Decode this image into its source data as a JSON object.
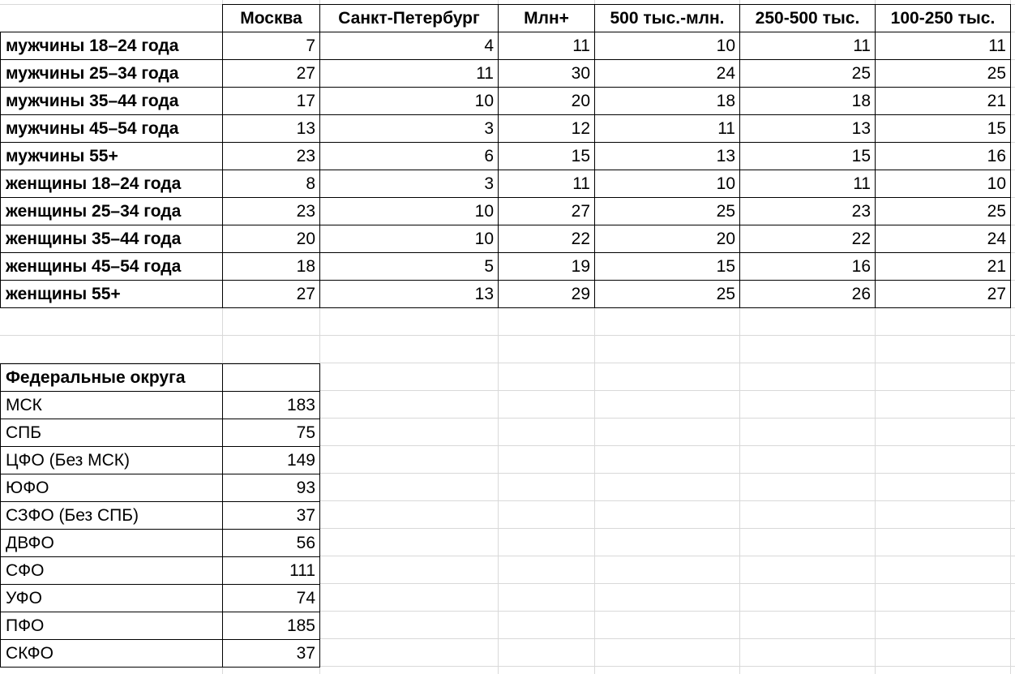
{
  "main_table": {
    "columns": [
      "Москва",
      "Санкт-Петербург",
      "Млн+",
      "500 тыс.-млн.",
      "250-500 тыс.",
      "100-250 тыс."
    ],
    "rows": [
      {
        "label": "мужчины 18–24 года",
        "values": [
          "7",
          "4",
          "11",
          "10",
          "11",
          "11"
        ]
      },
      {
        "label": "мужчины 25–34 года",
        "values": [
          "27",
          "11",
          "30",
          "24",
          "25",
          "25"
        ]
      },
      {
        "label": "мужчины 35–44 года",
        "values": [
          "17",
          "10",
          "20",
          "18",
          "18",
          "21"
        ]
      },
      {
        "label": "мужчины 45–54 года",
        "values": [
          "13",
          "3",
          "12",
          "11",
          "13",
          "15"
        ]
      },
      {
        "label": "мужчины 55+",
        "values": [
          "23",
          "6",
          "15",
          "13",
          "15",
          "16"
        ]
      },
      {
        "label": "женщины 18–24 года",
        "values": [
          "8",
          "3",
          "11",
          "10",
          "11",
          "10"
        ]
      },
      {
        "label": "женщины 25–34 года",
        "values": [
          "23",
          "10",
          "27",
          "25",
          "23",
          "25"
        ]
      },
      {
        "label": "женщины 35–44 года",
        "values": [
          "20",
          "10",
          "22",
          "20",
          "22",
          "24"
        ]
      },
      {
        "label": "женщины 45–54 года",
        "values": [
          "18",
          "5",
          "19",
          "15",
          "16",
          "21"
        ]
      },
      {
        "label": "женщины 55+",
        "values": [
          "27",
          "13",
          "29",
          "25",
          "26",
          "27"
        ]
      }
    ]
  },
  "federal_table": {
    "header": "Федеральные округа",
    "rows": [
      {
        "label": "МСК",
        "value": "183"
      },
      {
        "label": "СПБ",
        "value": "75"
      },
      {
        "label": "ЦФО (Без МСК)",
        "value": "149"
      },
      {
        "label": "ЮФО",
        "value": "93"
      },
      {
        "label": "СЗФО (Без СПБ)",
        "value": "37"
      },
      {
        "label": "ДВФО",
        "value": "56"
      },
      {
        "label": "СФО",
        "value": "111"
      },
      {
        "label": "УФО",
        "value": "74"
      },
      {
        "label": "ПФО",
        "value": "185"
      },
      {
        "label": "СКФО",
        "value": "37"
      }
    ]
  }
}
